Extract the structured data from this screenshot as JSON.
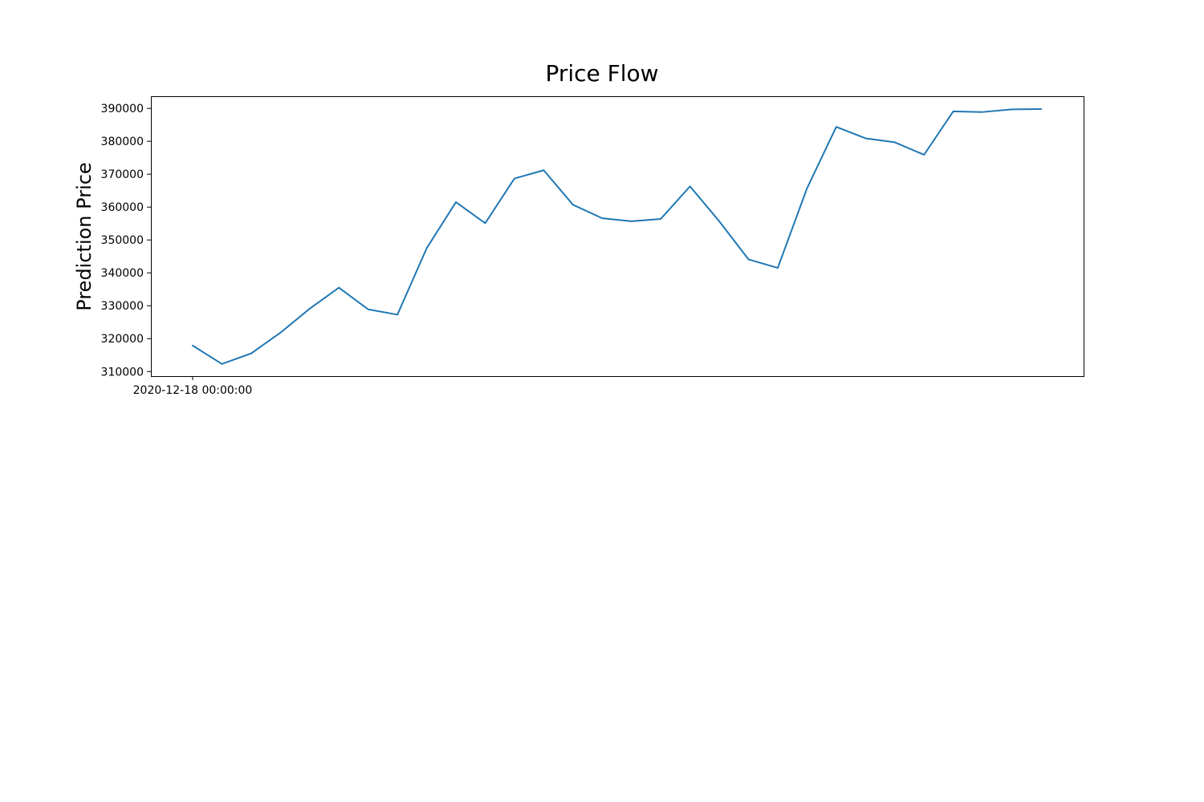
{
  "chart_data": {
    "type": "line",
    "title": "Price Flow",
    "xlabel": "",
    "ylabel": "Prediction Price",
    "x_tick_labels": [
      "2020-12-18 00:00:00"
    ],
    "y_ticks": [
      310000,
      320000,
      330000,
      340000,
      350000,
      360000,
      370000,
      380000,
      390000
    ],
    "y_tick_labels": [
      "310000",
      "320000",
      "330000",
      "340000",
      "350000",
      "360000",
      "370000",
      "380000",
      "390000"
    ],
    "ylim": [
      308600,
      393700
    ],
    "grid": false,
    "series_color": "#1f77b4",
    "series": [
      {
        "values": [
          317900,
          312300,
          315500,
          321800,
          329100,
          335500,
          328900,
          327300,
          347500,
          361500,
          355100,
          368700,
          371200,
          360700,
          356600,
          355700,
          356400,
          366300,
          355700,
          344100,
          341500,
          365700,
          384400,
          380900,
          379700,
          375900,
          389100,
          388900,
          389700,
          389800
        ]
      }
    ]
  }
}
